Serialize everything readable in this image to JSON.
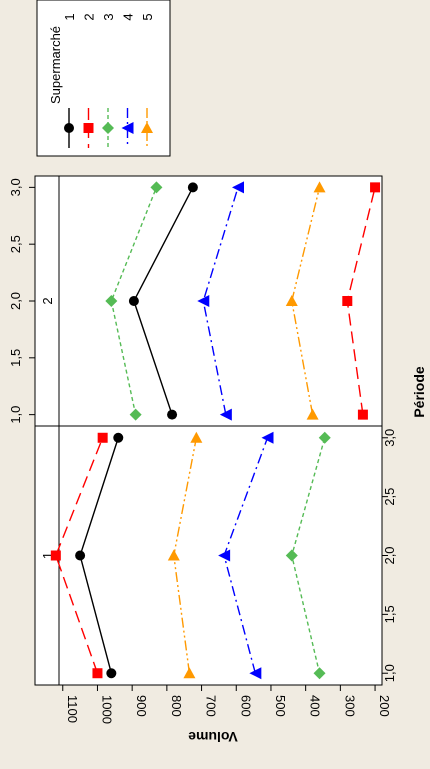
{
  "chart_data": {
    "type": "line",
    "orientation": "rotated-90",
    "xlabel": "Période",
    "ylabel": "Volume",
    "x_ticks": [
      "1,0",
      "1,5",
      "2,0",
      "2,5",
      "3,0"
    ],
    "y_ticks": [
      "1100",
      "1000",
      "900",
      "800",
      "700",
      "600",
      "500",
      "400",
      "300",
      "200"
    ],
    "ylim": [
      180,
      1180
    ],
    "xlim": [
      0.9,
      3.1
    ],
    "panels": [
      {
        "label": "1",
        "series": [
          {
            "name": "1",
            "x": [
              1,
              2,
              3
            ],
            "values": [
              960,
              1050,
              940
            ]
          },
          {
            "name": "2",
            "x": [
              1,
              2,
              3
            ],
            "values": [
              1000,
              1120,
              985
            ]
          },
          {
            "name": "3",
            "x": [
              1,
              2,
              3
            ],
            "values": [
              360,
              440,
              345
            ]
          },
          {
            "name": "4",
            "x": [
              1,
              2,
              3
            ],
            "values": [
              545,
              635,
              510
            ]
          },
          {
            "name": "5",
            "x": [
              1,
              2,
              3
            ],
            "values": [
              735,
              780,
              715
            ]
          }
        ]
      },
      {
        "label": "2",
        "series": [
          {
            "name": "1",
            "x": [
              1,
              2,
              3
            ],
            "values": [
              785,
              895,
              725
            ]
          },
          {
            "name": "2",
            "x": [
              1,
              2,
              3
            ],
            "values": [
              235,
              280,
              200
            ]
          },
          {
            "name": "3",
            "x": [
              1,
              2,
              3
            ],
            "values": [
              890,
              960,
              830
            ]
          },
          {
            "name": "4",
            "x": [
              1,
              2,
              3
            ],
            "values": [
              630,
              695,
              595
            ]
          },
          {
            "name": "5",
            "x": [
              1,
              2,
              3
            ],
            "values": [
              380,
              440,
              360
            ]
          }
        ]
      }
    ],
    "legend": {
      "title": "Supermarché",
      "position": "top-left",
      "entries": [
        "1",
        "2",
        "3",
        "4",
        "5"
      ]
    },
    "series_styles": [
      {
        "color": "#000000",
        "marker": "circle",
        "dash": ""
      },
      {
        "color": "#ff0000",
        "marker": "square",
        "dash": "12,6"
      },
      {
        "color": "#55bb55",
        "marker": "diamond",
        "dash": "4,3"
      },
      {
        "color": "#0000ff",
        "marker": "triangle-left",
        "dash": "10,4,2,4"
      },
      {
        "color": "#ff9900",
        "marker": "triangle-up",
        "dash": "10,3,2,3,2,3"
      }
    ]
  }
}
